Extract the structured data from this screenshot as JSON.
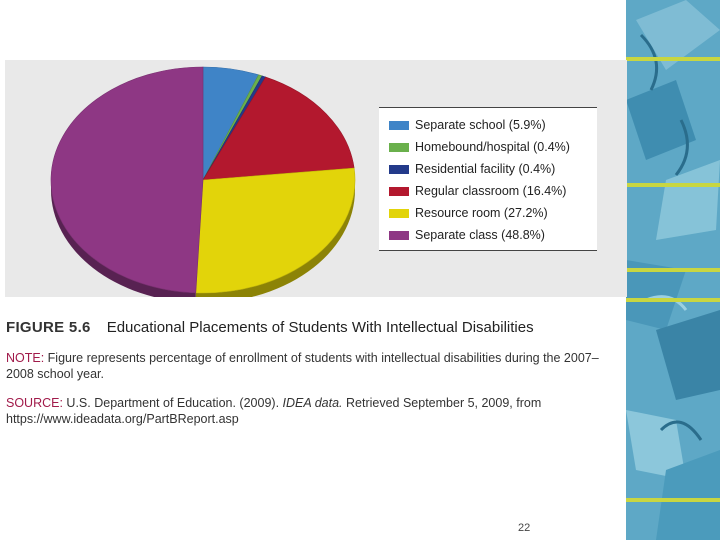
{
  "chart_data": {
    "type": "pie",
    "title": "",
    "slices": [
      {
        "label": "Separate school (5.9%)",
        "value": 5.9,
        "color": "#3f84c7"
      },
      {
        "label": "Homebound/hospital (0.4%)",
        "value": 0.4,
        "color": "#6ab04c"
      },
      {
        "label": "Residential facility (0.4%)",
        "value": 0.4,
        "color": "#233a8a"
      },
      {
        "label": "Regular classroom (16.4%)",
        "value": 16.4,
        "color": "#b3182e"
      },
      {
        "label": "Resource room (27.2%)",
        "value": 27.2,
        "color": "#e2d40a"
      },
      {
        "label": "Separate class (48.8%)",
        "value": 48.8,
        "color": "#8e3784"
      }
    ],
    "legend_position": "right"
  },
  "caption": {
    "figure_number": "FIGURE 5.6",
    "title": "Educational Placements of Students With Intellectual Disabilities",
    "note_label": "NOTE:",
    "note_text": " Figure represents percentage of enrollment of students with intellectual disabilities during the 2007–2008 school year.",
    "source_label": "SOURCE:",
    "source_text_1": " U.S. Department of Education. (2009). ",
    "source_italic": "IDEA data.",
    "source_text_2": " Retrieved September 5, 2009, from https://www.ideadata.org/PartBReport.asp"
  },
  "page_number": "22",
  "colors": {
    "panel_background": "#e9e9e9",
    "caption_label": "#a11a4a",
    "decor_strip": "#5ea8c6"
  }
}
